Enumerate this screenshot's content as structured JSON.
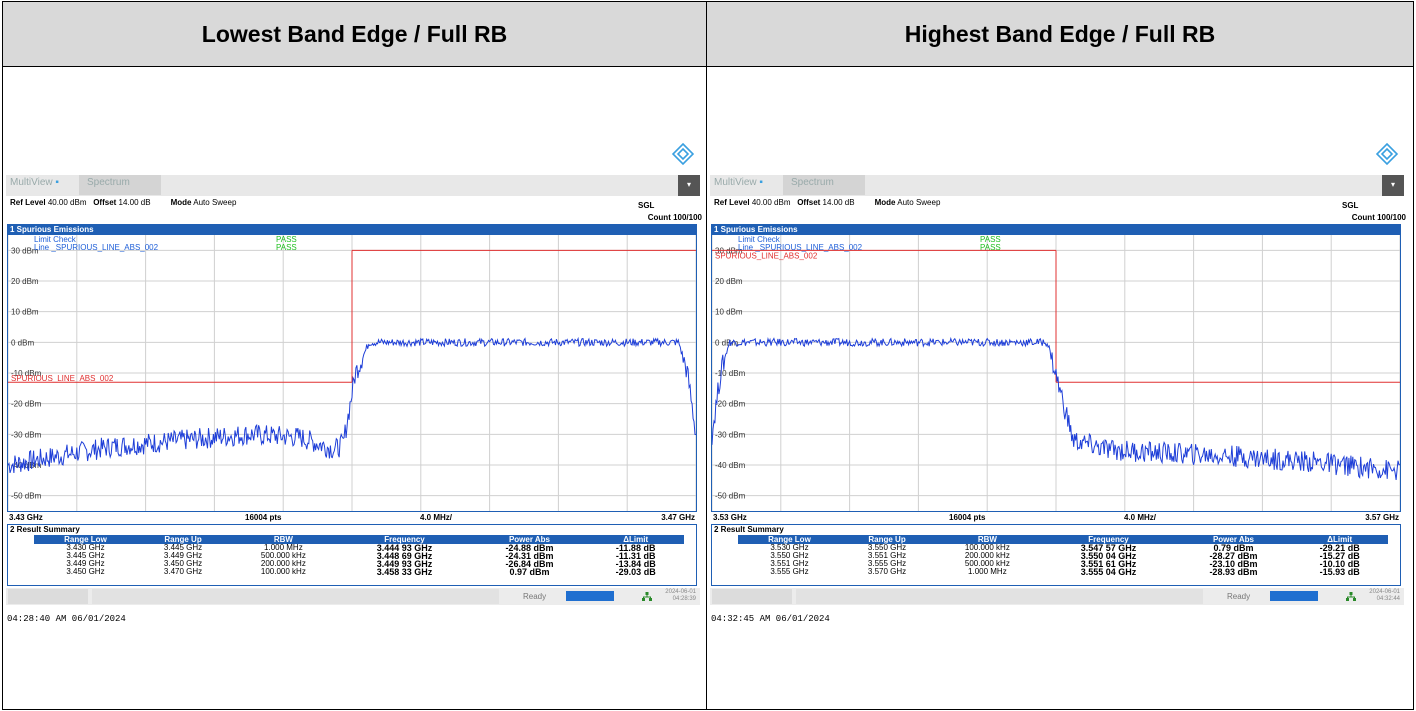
{
  "table_headers": [
    "Lowest Band Edge / Full RB",
    "Highest Band Edge / Full RB"
  ],
  "panels": [
    {
      "toolbar": {
        "multiview": "MultiView",
        "tab": "Spectrum"
      },
      "info": {
        "ref_label": "Ref Level",
        "ref_value": "40.00 dBm",
        "offset_label": "Offset",
        "offset_value": "14.00 dB",
        "mode_label": "Mode",
        "mode_value": "Auto Sweep",
        "sgl": "SGL",
        "count": "Count 100/100"
      },
      "diagram_title": "1 Spurious Emissions",
      "limit_check": "Limit Check",
      "limit_line": "Line _SPURIOUS_LINE_ABS_002",
      "pass1": "PASS",
      "pass2": "PASS",
      "limit_label": "SPURIOUS_LINE_ABS_002",
      "y_labels": [
        "30 dBm",
        "20 dBm",
        "10 dBm",
        "0 dBm",
        "-10 dBm",
        "-20 dBm",
        "-30 dBm",
        "-40 dBm",
        "-50 dBm"
      ],
      "footer": {
        "start": "3.43 GHz",
        "pts": "16004 pts",
        "span": "4.0 MHz/",
        "stop": "3.47 GHz"
      },
      "result_title": "2 Result Summary",
      "result_headers": [
        "Range Low",
        "Range Up",
        "RBW",
        "Frequency",
        "Power Abs",
        "ΔLimit"
      ],
      "result_rows": [
        [
          "3.430 GHz",
          "3.445 GHz",
          "1.000 MHz",
          "3.444 93 GHz",
          "-24.88 dBm",
          "-11.88 dB"
        ],
        [
          "3.445 GHz",
          "3.449 GHz",
          "500.000 kHz",
          "3.448 69 GHz",
          "-24.31 dBm",
          "-11.31 dB"
        ],
        [
          "3.449 GHz",
          "3.450 GHz",
          "200.000 kHz",
          "3.449 93 GHz",
          "-26.84 dBm",
          "-13.84 dB"
        ],
        [
          "3.450 GHz",
          "3.470 GHz",
          "100.000 kHz",
          "3.458 33 GHz",
          "0.97 dBm",
          "-29.03 dB"
        ]
      ],
      "status": {
        "ready": "Ready",
        "date": "2024-06-01",
        "time": "04:28:39"
      },
      "timestamp": "04:28:40 AM  06/01/2024",
      "chart_data": {
        "type": "line",
        "x_range": [
          3.43,
          3.47
        ],
        "x_unit": "GHz",
        "ylim": [
          -55,
          35
        ],
        "limit_segments": [
          {
            "x": [
              3.43,
              3.45
            ],
            "y": -13
          },
          {
            "x": [
              3.45,
              3.47
            ],
            "y": 30
          }
        ],
        "trace_x": [
          3.43,
          3.432,
          3.436,
          3.44,
          3.444,
          3.447,
          3.449,
          3.4495,
          3.4502,
          3.451,
          3.46,
          3.469,
          3.4695,
          3.47
        ],
        "trace_y": [
          -40,
          -38,
          -34,
          -32,
          -30,
          -31,
          -35,
          -33,
          -10,
          0,
          0,
          0,
          -10,
          -30
        ]
      }
    },
    {
      "toolbar": {
        "multiview": "MultiView",
        "tab": "Spectrum"
      },
      "info": {
        "ref_label": "Ref Level",
        "ref_value": "40.00 dBm",
        "offset_label": "Offset",
        "offset_value": "14.00 dB",
        "mode_label": "Mode",
        "mode_value": "Auto Sweep",
        "sgl": "SGL",
        "count": "Count 100/100"
      },
      "diagram_title": "1 Spurious Emissions",
      "limit_check": "Limit Check",
      "limit_line": "Line _SPURIOUS_LINE_ABS_002",
      "pass1": "PASS",
      "pass2": "PASS",
      "limit_label": "SPURIOUS_LINE_ABS_002",
      "y_labels": [
        "30 dBm",
        "20 dBm",
        "10 dBm",
        "0 dBm",
        "-10 dBm",
        "-20 dBm",
        "-30 dBm",
        "-40 dBm",
        "-50 dBm"
      ],
      "footer": {
        "start": "3.53 GHz",
        "pts": "16004 pts",
        "span": "4.0 MHz/",
        "stop": "3.57 GHz"
      },
      "result_title": "2 Result Summary",
      "result_headers": [
        "Range Low",
        "Range Up",
        "RBW",
        "Frequency",
        "Power Abs",
        "ΔLimit"
      ],
      "result_rows": [
        [
          "3.530 GHz",
          "3.550 GHz",
          "100.000 kHz",
          "3.547 57 GHz",
          "0.79 dBm",
          "-29.21 dB"
        ],
        [
          "3.550 GHz",
          "3.551 GHz",
          "200.000 kHz",
          "3.550 04 GHz",
          "-28.27 dBm",
          "-15.27 dB"
        ],
        [
          "3.551 GHz",
          "3.555 GHz",
          "500.000 kHz",
          "3.551 61 GHz",
          "-23.10 dBm",
          "-10.10 dB"
        ],
        [
          "3.555 GHz",
          "3.570 GHz",
          "1.000 MHz",
          "3.555 04 GHz",
          "-28.93 dBm",
          "-15.93 dB"
        ]
      ],
      "status": {
        "ready": "Ready",
        "date": "2024-06-01",
        "time": "04:32:44"
      },
      "timestamp": "04:32:45 AM  06/01/2024",
      "chart_data": {
        "type": "line",
        "x_range": [
          3.53,
          3.57
        ],
        "x_unit": "GHz",
        "ylim": [
          -55,
          35
        ],
        "limit_segments": [
          {
            "x": [
              3.53,
              3.55
            ],
            "y": 30
          },
          {
            "x": [
              3.55,
              3.57
            ],
            "y": -13
          }
        ],
        "trace_x": [
          3.53,
          3.5305,
          3.531,
          3.54,
          3.5495,
          3.5502,
          3.551,
          3.553,
          3.556,
          3.56,
          3.565,
          3.57
        ],
        "trace_y": [
          -30,
          -10,
          0,
          0,
          0,
          -15,
          -32,
          -35,
          -36,
          -37,
          -39,
          -42
        ]
      }
    }
  ]
}
